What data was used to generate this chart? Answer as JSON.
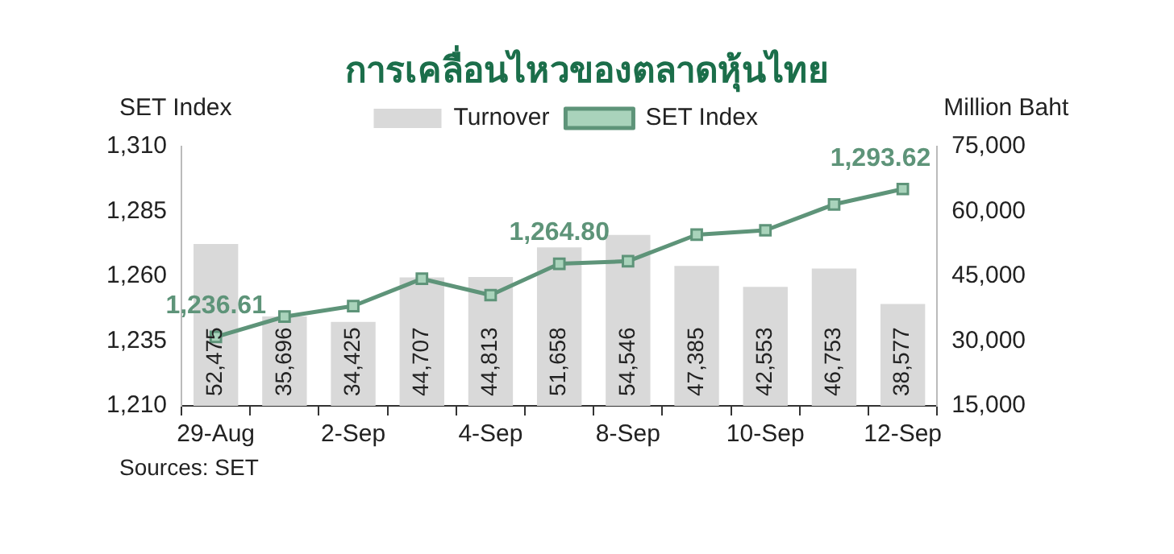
{
  "chart_data": {
    "type": "bar",
    "title": "การเคลื่อนไหวของตลาดหุ้นไทย",
    "ylabel": "SET Index",
    "y2label": "Million Baht",
    "categories": [
      "29-Aug",
      null,
      "2-Sep",
      null,
      "4-Sep",
      null,
      "8-Sep",
      null,
      "10-Sep",
      null,
      "12-Sep"
    ],
    "series": [
      {
        "name": "Turnover",
        "axis": "y2",
        "color": "#d9d9d9",
        "values": [
          52475,
          35696,
          34425,
          44707,
          44813,
          51658,
          54546,
          47385,
          42553,
          46753,
          38577
        ],
        "value_labels": [
          "52,475",
          "35,696",
          "34,425",
          "44,707",
          "44,813",
          "51,658",
          "54,546",
          "47,385",
          "42,553",
          "46,753",
          "38,577"
        ]
      },
      {
        "name": "SET Index",
        "type": "line",
        "color": "#5e9479",
        "values": [
          1236.61,
          1244.4,
          1248.5,
          1259.0,
          1252.7,
          1264.8,
          1265.8,
          1276.0,
          1277.7,
          1287.7,
          1293.62
        ],
        "value_labels": [
          "1,236.61",
          null,
          null,
          null,
          null,
          "1,264.80",
          null,
          null,
          null,
          null,
          "1,293.62"
        ]
      }
    ],
    "ylim": [
      1210,
      1310
    ],
    "yticks": [
      {
        "value": 1210,
        "label": "1,210"
      },
      {
        "value": 1235,
        "label": "1,235"
      },
      {
        "value": 1260,
        "label": "1,260"
      },
      {
        "value": 1285,
        "label": "1,285"
      },
      {
        "value": 1310,
        "label": "1,310"
      }
    ],
    "y2lim": [
      15000,
      75000
    ],
    "y2ticks": [
      {
        "value": 15000,
        "label": "15,000"
      },
      {
        "value": 30000,
        "label": "30,000"
      },
      {
        "value": 45000,
        "label": "45,000"
      },
      {
        "value": 60000,
        "label": "60,000"
      },
      {
        "value": 75000,
        "label": "75,000"
      }
    ],
    "legend": "top",
    "grid": false,
    "marker": "square",
    "line_style": "solid",
    "annotations": [
      "Sources: SET"
    ]
  }
}
